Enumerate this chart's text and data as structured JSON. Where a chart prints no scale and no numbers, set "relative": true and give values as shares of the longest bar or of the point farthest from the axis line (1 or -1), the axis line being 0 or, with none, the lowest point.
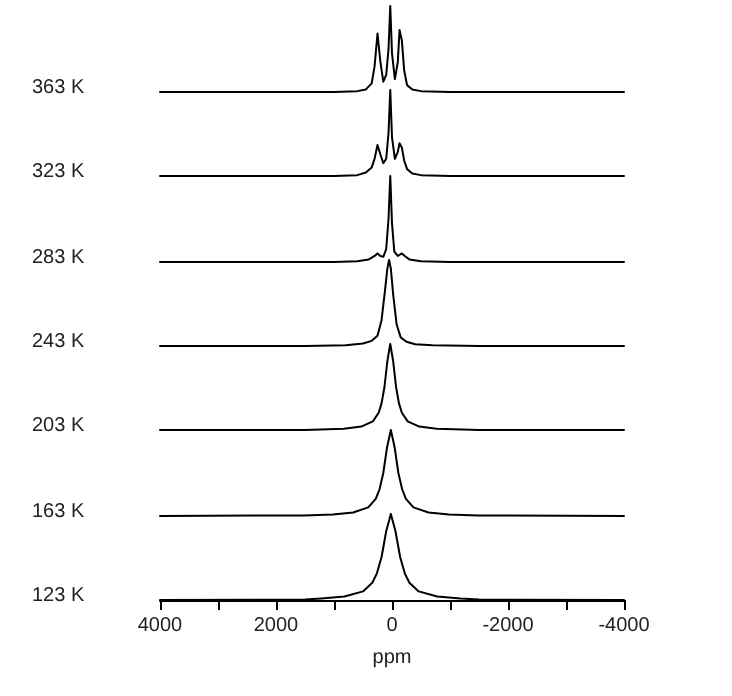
{
  "chart_data": [
    {
      "type": "line",
      "ylabel": "363 K",
      "relative": true,
      "color": "#000000",
      "xlim": [
        4000,
        -4000
      ],
      "tick_labels": false,
      "x": [
        4000,
        1000,
        600,
        450,
        350,
        300,
        250,
        200,
        150,
        100,
        60,
        30,
        0,
        -50,
        -100,
        -130,
        -170,
        -210,
        -260,
        -350,
        -500,
        -1000,
        -4000
      ],
      "values": [
        0,
        0,
        0.01,
        0.03,
        0.1,
        0.3,
        0.68,
        0.35,
        0.12,
        0.2,
        0.5,
        1,
        0.45,
        0.15,
        0.35,
        0.72,
        0.6,
        0.25,
        0.08,
        0.03,
        0.01,
        0,
        0
      ]
    },
    {
      "type": "line",
      "ylabel": "323 K",
      "relative": true,
      "color": "#000000",
      "xlim": [
        4000,
        -4000
      ],
      "tick_labels": false,
      "x": [
        4000,
        1000,
        600,
        450,
        350,
        300,
        250,
        200,
        150,
        100,
        60,
        30,
        0,
        -50,
        -100,
        -130,
        -170,
        -210,
        -260,
        -350,
        -500,
        -1000,
        -4000
      ],
      "values": [
        0,
        0,
        0.01,
        0.04,
        0.1,
        0.2,
        0.36,
        0.25,
        0.15,
        0.2,
        0.5,
        1,
        0.45,
        0.2,
        0.28,
        0.38,
        0.33,
        0.18,
        0.08,
        0.03,
        0.01,
        0,
        0
      ]
    },
    {
      "type": "line",
      "ylabel": "283 K",
      "relative": true,
      "color": "#000000",
      "xlim": [
        4000,
        -4000
      ],
      "tick_labels": false,
      "x": [
        4000,
        1000,
        600,
        400,
        300,
        250,
        200,
        150,
        100,
        60,
        30,
        0,
        -40,
        -100,
        -170,
        -220,
        -300,
        -500,
        -1000,
        -4000
      ],
      "values": [
        0,
        0,
        0.01,
        0.03,
        0.07,
        0.1,
        0.07,
        0.06,
        0.15,
        0.5,
        1,
        0.45,
        0.12,
        0.07,
        0.1,
        0.07,
        0.03,
        0.01,
        0,
        0
      ]
    },
    {
      "type": "line",
      "ylabel": "243 K",
      "relative": true,
      "color": "#000000",
      "xlim": [
        4000,
        -4000
      ],
      "tick_labels": false,
      "x": [
        4000,
        1500,
        800,
        500,
        350,
        250,
        180,
        120,
        80,
        50,
        20,
        -20,
        -80,
        -150,
        -250,
        -400,
        -700,
        -1500,
        -4000
      ],
      "values": [
        0,
        0,
        0.01,
        0.03,
        0.06,
        0.12,
        0.3,
        0.65,
        0.9,
        1,
        0.9,
        0.6,
        0.25,
        0.1,
        0.05,
        0.02,
        0.01,
        0,
        0
      ]
    },
    {
      "type": "line",
      "ylabel": "203 K",
      "relative": true,
      "color": "#000000",
      "xlim": [
        4000,
        -4000
      ],
      "tick_labels": false,
      "x": [
        4000,
        1500,
        830,
        530,
        330,
        230,
        180,
        130,
        80,
        30,
        -20,
        -70,
        -120,
        -170,
        -270,
        -470,
        -770,
        -1500,
        -4000
      ],
      "values": [
        0,
        0,
        0.015,
        0.04,
        0.1,
        0.2,
        0.31,
        0.5,
        0.8,
        1,
        0.8,
        0.5,
        0.31,
        0.2,
        0.1,
        0.04,
        0.015,
        0,
        0
      ]
    },
    {
      "type": "line",
      "ylabel": "163 K",
      "relative": true,
      "color": "#000000",
      "xlim": [
        4000,
        -4000
      ],
      "tick_labels": false,
      "x": [
        4000,
        1520,
        1020,
        670,
        410,
        280,
        215,
        150,
        85,
        20,
        -45,
        -110,
        -175,
        -240,
        -370,
        -630,
        -980,
        -1480,
        -4000
      ],
      "values": [
        0,
        0.007,
        0.017,
        0.04,
        0.1,
        0.2,
        0.31,
        0.5,
        0.8,
        1,
        0.8,
        0.5,
        0.31,
        0.2,
        0.1,
        0.04,
        0.017,
        0.007,
        0
      ]
    },
    {
      "type": "line",
      "ylabel": "123 K",
      "xlabel": "ppm",
      "relative": true,
      "color": "#000000",
      "xlim": [
        4000,
        -4000
      ],
      "xticks": [
        4000,
        {
          "value": 3000,
          "label": null
        },
        2000,
        {
          "value": 1000,
          "label": null
        },
        0,
        {
          "value": -1000,
          "label": null
        },
        -2000,
        {
          "value": -3000,
          "label": null
        },
        -4000
      ],
      "tick_labels": "x",
      "x": [
        4000,
        1500,
        1220,
        820,
        500,
        340,
        260,
        180,
        100,
        20,
        -60,
        -140,
        -220,
        -300,
        -460,
        -780,
        -1180,
        -1500,
        -4000
      ],
      "values": [
        0,
        0.005,
        0.017,
        0.04,
        0.1,
        0.2,
        0.31,
        0.5,
        0.8,
        1,
        0.8,
        0.5,
        0.31,
        0.2,
        0.1,
        0.04,
        0.017,
        0.005,
        0
      ]
    }
  ]
}
